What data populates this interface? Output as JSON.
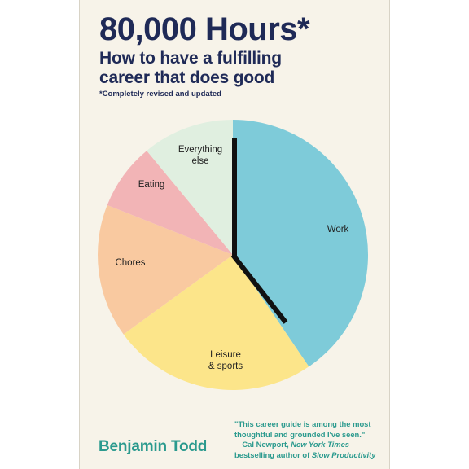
{
  "book": {
    "title": "80,000 Hours*",
    "subtitle_line1": "How to have a fulfilling",
    "subtitle_line2": "career that does good",
    "edition_note": "*Completely revised and updated",
    "author": "Benjamin Todd"
  },
  "blurb": {
    "line1": "\"This career guide is among the most",
    "line2": "thoughtful and grounded I've seen.\"",
    "line3_prefix": "—Cal Newport, ",
    "line3_source": "New York Times",
    "line4_prefix": "bestselling author of ",
    "line4_title": "Slow Productivity"
  },
  "pie": {
    "slices": [
      {
        "label_lines": [
          "Work"
        ],
        "percent": 40.5,
        "color": "#7ecbd9"
      },
      {
        "label_lines": [
          "Leisure",
          "& sports"
        ],
        "percent": 24.5,
        "color": "#fce58a"
      },
      {
        "label_lines": [
          "Chores"
        ],
        "percent": 16.0,
        "color": "#f9c9a0"
      },
      {
        "label_lines": [
          "Eating"
        ],
        "percent": 8.0,
        "color": "#f2b4b6"
      },
      {
        "label_lines": [
          "Everything",
          "else"
        ],
        "percent": 11.0,
        "color": "#e0efe0"
      }
    ],
    "hand_color": "#111111"
  }
}
